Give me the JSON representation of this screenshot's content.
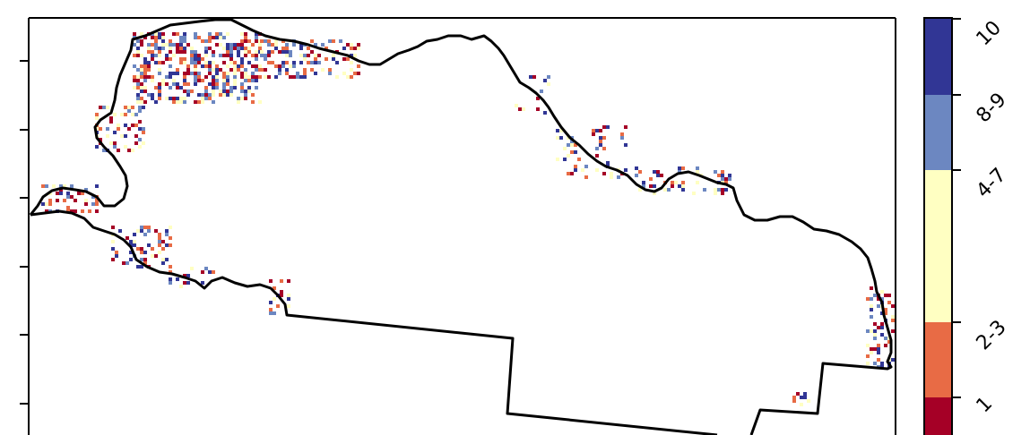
{
  "colorbar": {
    "bins": [
      {
        "label": "10",
        "color": "#313695"
      },
      {
        "label": "8-9",
        "color": "#6c87c1"
      },
      {
        "label": "4-7",
        "color": "#ffffc2"
      },
      {
        "label": "2-3",
        "color": "#e86b45"
      },
      {
        "label": "1",
        "color": "#a50026"
      }
    ]
  },
  "colors": {
    "boundary": "#000000",
    "background": "#ffffff"
  }
}
